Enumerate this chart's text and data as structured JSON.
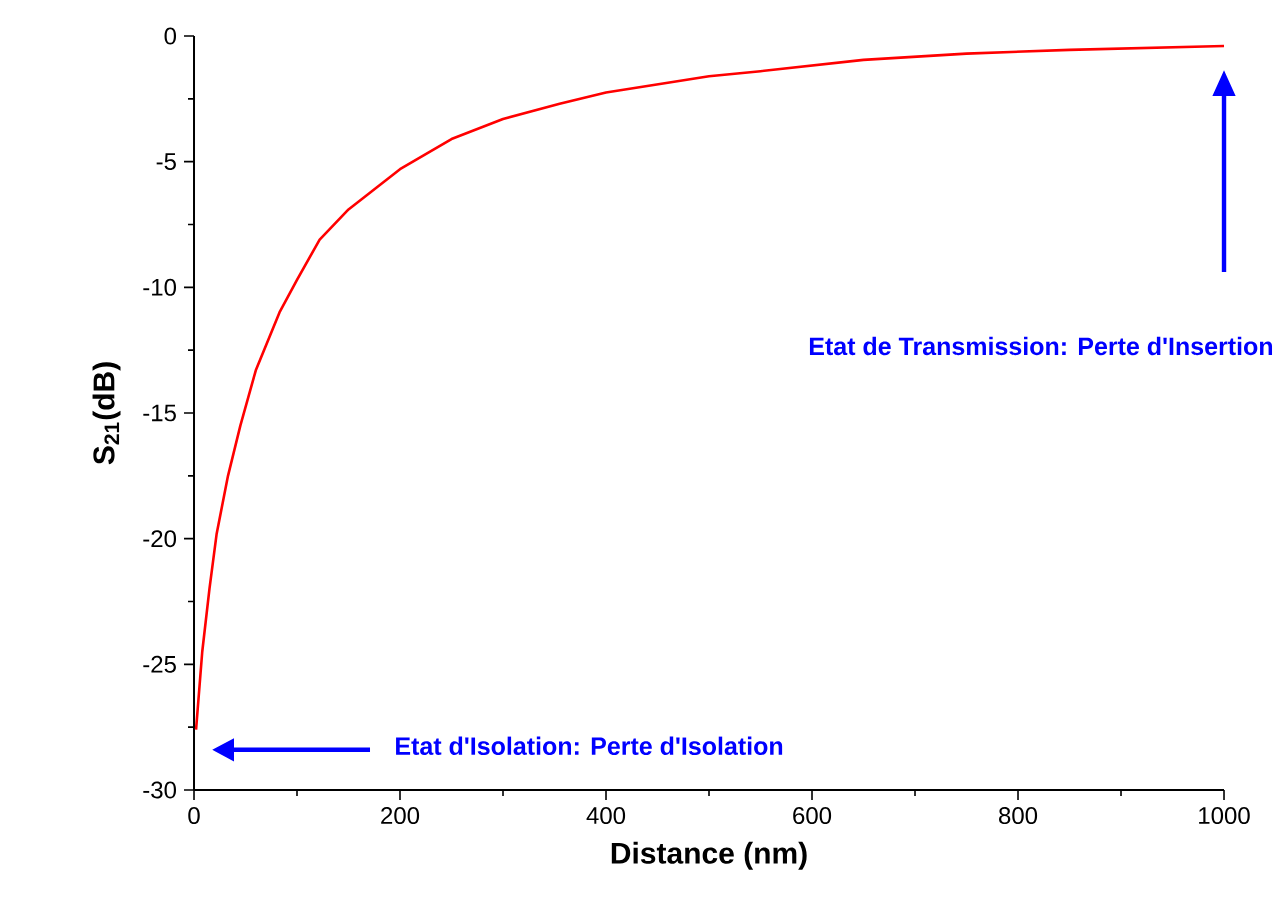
{
  "chart_data": {
    "type": "line",
    "xlabel": "Distance (nm)",
    "ylabel": "S$_{21}$(dB)",
    "x": [
      2,
      8,
      15,
      22,
      33,
      45,
      60,
      83,
      100,
      122,
      150,
      200,
      250,
      300,
      355,
      400,
      500,
      550,
      650,
      750,
      850,
      1000
    ],
    "series": [
      {
        "color": "#ff0000",
        "values": [
          -27.6,
          -24.5,
          -22,
          -19.8,
          -17.5,
          -15.5,
          -13.3,
          -11.0,
          -9.7,
          -8.1,
          -6.9,
          -5.3,
          -4.1,
          -3.3,
          -2.7,
          -2.25,
          -1.6,
          -1.4,
          -0.95,
          -0.7,
          -0.55,
          -0.4
        ]
      }
    ],
    "xlim": [
      0,
      1000
    ],
    "ylim": [
      -30,
      0
    ],
    "xticks": [
      0,
      200,
      400,
      600,
      800,
      1000
    ],
    "yticks": [
      -30,
      -25,
      -20,
      -15,
      -10,
      -5,
      0
    ],
    "annotations": [
      "Etat d'Isolation: Perte d'Isolation",
      "Etat de Transmission: Perte d'Insertion"
    ],
    "grid": false,
    "legend": false,
    "marker": "none",
    "line_style": "solid"
  }
}
